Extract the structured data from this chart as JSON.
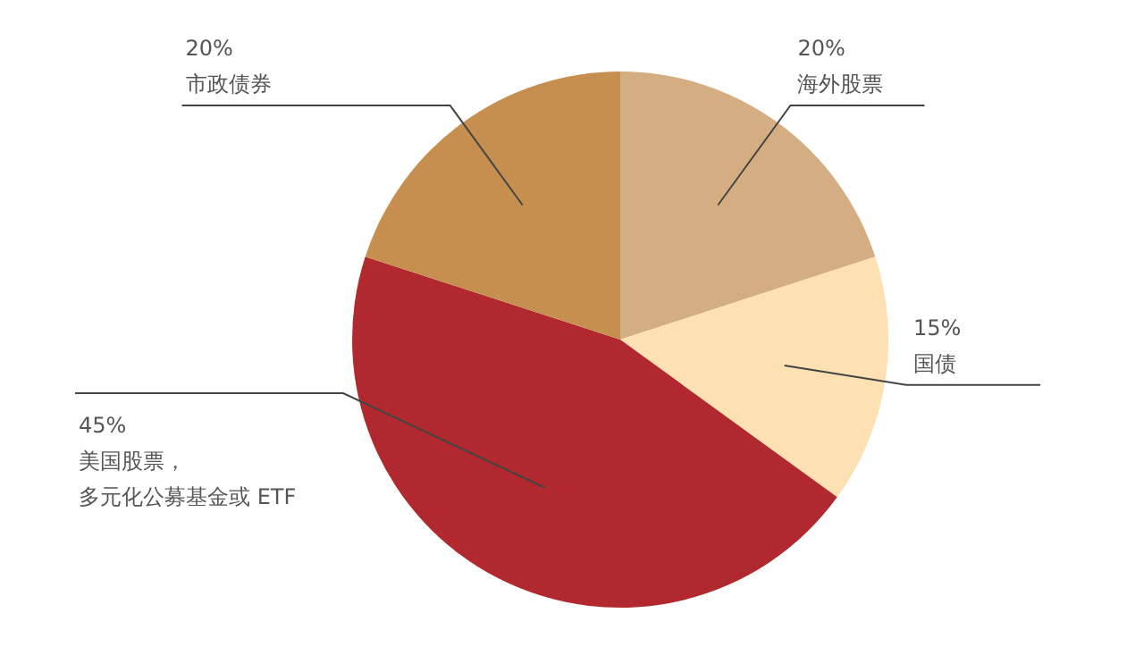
{
  "chart_data": {
    "type": "pie",
    "categories": [
      "海外股票",
      "国债",
      "美国股票，多元化公募基金或 ETF",
      "市政债券"
    ],
    "values": [
      20,
      15,
      45,
      20
    ],
    "value_labels": [
      "20%",
      "15%",
      "45%",
      "20%"
    ],
    "colors": [
      "#d4ae82",
      "#fde1b2",
      "#b2282f",
      "#c68f4f"
    ],
    "legend": false
  }
}
